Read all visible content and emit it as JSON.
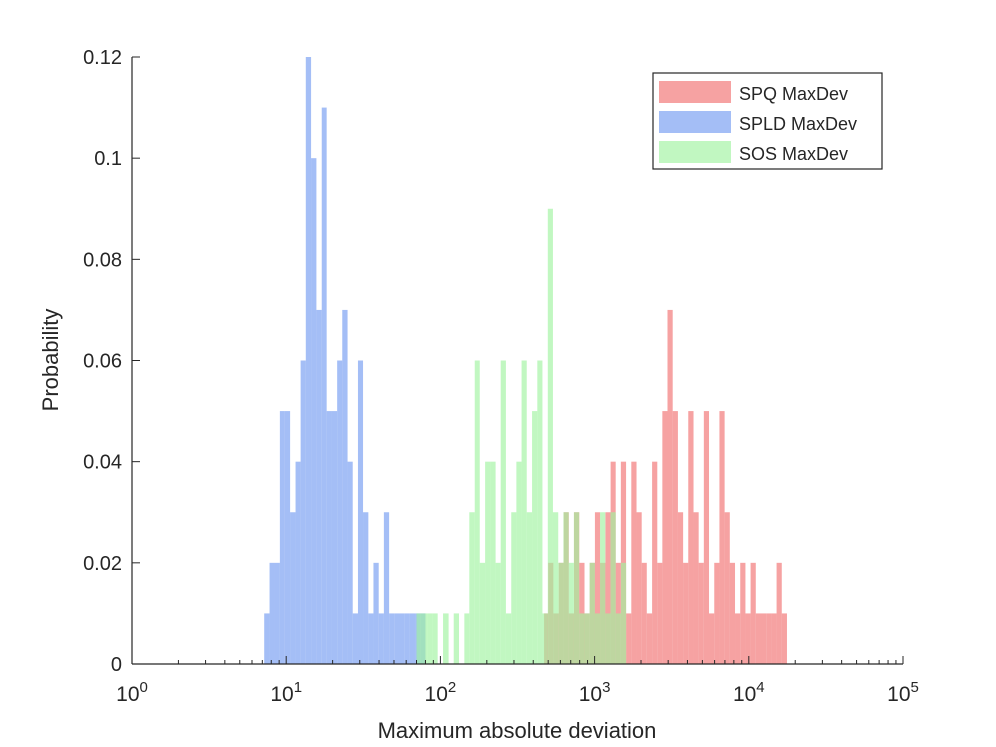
{
  "chart_data": {
    "type": "histogram",
    "xscale": "log",
    "xlim": [
      1,
      100000
    ],
    "ylim": [
      0,
      0.12
    ],
    "xlabel": "Maximum absolute deviation",
    "ylabel": "Probability",
    "yticks": [
      0,
      0.02,
      0.04,
      0.06,
      0.08,
      0.1,
      0.12
    ],
    "ytick_labels": [
      "0",
      "0.02",
      "0.04",
      "0.06",
      "0.08",
      "0.1",
      "0.12"
    ],
    "xticks": [
      1,
      10,
      100,
      1000,
      10000,
      100000
    ],
    "xtick_labels": [
      {
        "base": "10",
        "exp": "0"
      },
      {
        "base": "10",
        "exp": "1"
      },
      {
        "base": "10",
        "exp": "2"
      },
      {
        "base": "10",
        "exp": "3"
      },
      {
        "base": "10",
        "exp": "4"
      },
      {
        "base": "10",
        "exp": "5"
      }
    ],
    "legend_position": "top-right",
    "series": [
      {
        "name": "SPQ MaxDev",
        "color": "#f27b7b",
        "opacity": 0.7,
        "bins": [
          [
            470,
            500,
            0.01
          ],
          [
            500,
            540,
            0.02
          ],
          [
            540,
            585,
            0.01
          ],
          [
            585,
            630,
            0.02
          ],
          [
            630,
            680,
            0.03
          ],
          [
            680,
            735,
            0.01
          ],
          [
            735,
            795,
            0.03
          ],
          [
            795,
            860,
            0.02
          ],
          [
            860,
            930,
            0.01
          ],
          [
            930,
            1005,
            0.02
          ],
          [
            1005,
            1085,
            0.03
          ],
          [
            1085,
            1175,
            0.02
          ],
          [
            1175,
            1270,
            0.03
          ],
          [
            1270,
            1370,
            0.04
          ],
          [
            1370,
            1480,
            0.02
          ],
          [
            1480,
            1600,
            0.04
          ],
          [
            1600,
            1730,
            0.01
          ],
          [
            1730,
            1870,
            0.04
          ],
          [
            1870,
            2020,
            0.03
          ],
          [
            2020,
            2180,
            0.02
          ],
          [
            2180,
            2360,
            0.01
          ],
          [
            2360,
            2550,
            0.04
          ],
          [
            2550,
            2750,
            0.02
          ],
          [
            2750,
            2970,
            0.05
          ],
          [
            2970,
            3210,
            0.07
          ],
          [
            3210,
            3470,
            0.05
          ],
          [
            3470,
            3750,
            0.03
          ],
          [
            3750,
            4050,
            0.02
          ],
          [
            4050,
            4380,
            0.05
          ],
          [
            4380,
            4730,
            0.03
          ],
          [
            4730,
            5110,
            0.02
          ],
          [
            5110,
            5520,
            0.05
          ],
          [
            5520,
            5970,
            0.01
          ],
          [
            5970,
            6450,
            0.02
          ],
          [
            6450,
            6970,
            0.05
          ],
          [
            6970,
            7530,
            0.03
          ],
          [
            7530,
            8140,
            0.02
          ],
          [
            8140,
            8800,
            0.01
          ],
          [
            8800,
            9510,
            0.02
          ],
          [
            9510,
            10270,
            0.01
          ],
          [
            10270,
            11100,
            0.02
          ],
          [
            11100,
            12000,
            0.01
          ],
          [
            12000,
            12970,
            0.01
          ],
          [
            12970,
            14010,
            0.01
          ],
          [
            14010,
            15140,
            0.01
          ],
          [
            15140,
            16360,
            0.02
          ],
          [
            16360,
            17680,
            0.01
          ]
        ]
      },
      {
        "name": "SPLD MaxDev",
        "color": "#7ea2f2",
        "opacity": 0.7,
        "bins": [
          [
            7.2,
            7.8,
            0.01
          ],
          [
            7.8,
            8.4,
            0.02
          ],
          [
            8.4,
            9.1,
            0.02
          ],
          [
            9.1,
            9.8,
            0.05
          ],
          [
            9.8,
            10.6,
            0.05
          ],
          [
            10.6,
            11.5,
            0.03
          ],
          [
            11.5,
            12.4,
            0.04
          ],
          [
            12.4,
            13.4,
            0.06
          ],
          [
            13.4,
            14.5,
            0.12
          ],
          [
            14.5,
            15.7,
            0.1
          ],
          [
            15.7,
            17.0,
            0.07
          ],
          [
            17.0,
            18.3,
            0.11
          ],
          [
            18.3,
            19.8,
            0.05
          ],
          [
            19.8,
            21.4,
            0.05
          ],
          [
            21.4,
            23.1,
            0.06
          ],
          [
            23.1,
            25.0,
            0.07
          ],
          [
            25.0,
            27.0,
            0.04
          ],
          [
            27.0,
            29.2,
            0.01
          ],
          [
            29.2,
            31.5,
            0.06
          ],
          [
            31.5,
            34.1,
            0.03
          ],
          [
            34.1,
            36.8,
            0.01
          ],
          [
            36.8,
            39.8,
            0.02
          ],
          [
            39.8,
            43.0,
            0.01
          ],
          [
            43.0,
            46.5,
            0.03
          ],
          [
            46.5,
            50.2,
            0.01
          ],
          [
            50.2,
            54.3,
            0.01
          ],
          [
            54.3,
            58.7,
            0.01
          ],
          [
            58.7,
            63.4,
            0.01
          ],
          [
            63.4,
            68.5,
            0.01
          ],
          [
            68.5,
            74.0,
            0.01
          ],
          [
            74.0,
            80.0,
            0.01
          ]
        ]
      },
      {
        "name": "SOS MaxDev",
        "color": "#9ff29f",
        "opacity": 0.65,
        "bins": [
          [
            70,
            76,
            0.01
          ],
          [
            76,
            82,
            0.01
          ],
          [
            82,
            89,
            0.01
          ],
          [
            89,
            96,
            0.01
          ],
          [
            104,
            113,
            0.01
          ],
          [
            122,
            132,
            0.01
          ],
          [
            143,
            154,
            0.01
          ],
          [
            154,
            167,
            0.03
          ],
          [
            167,
            180,
            0.06
          ],
          [
            180,
            195,
            0.02
          ],
          [
            195,
            211,
            0.04
          ],
          [
            211,
            228,
            0.04
          ],
          [
            228,
            246,
            0.02
          ],
          [
            246,
            266,
            0.06
          ],
          [
            266,
            288,
            0.01
          ],
          [
            288,
            311,
            0.03
          ],
          [
            311,
            336,
            0.04
          ],
          [
            336,
            363,
            0.06
          ],
          [
            363,
            393,
            0.03
          ],
          [
            393,
            425,
            0.05
          ],
          [
            425,
            459,
            0.06
          ],
          [
            459,
            497,
            0.01
          ],
          [
            497,
            537,
            0.09
          ],
          [
            537,
            581,
            0.03
          ],
          [
            581,
            628,
            0.02
          ],
          [
            628,
            679,
            0.03
          ],
          [
            679,
            734,
            0.02
          ],
          [
            734,
            794,
            0.03
          ],
          [
            794,
            858,
            0.01
          ],
          [
            858,
            928,
            0.01
          ],
          [
            928,
            1004,
            0.02
          ],
          [
            1004,
            1085,
            0.01
          ],
          [
            1085,
            1173,
            0.03
          ],
          [
            1173,
            1268,
            0.01
          ],
          [
            1268,
            1371,
            0.03
          ],
          [
            1371,
            1482,
            0.01
          ],
          [
            1482,
            1602,
            0.02
          ]
        ]
      }
    ]
  }
}
